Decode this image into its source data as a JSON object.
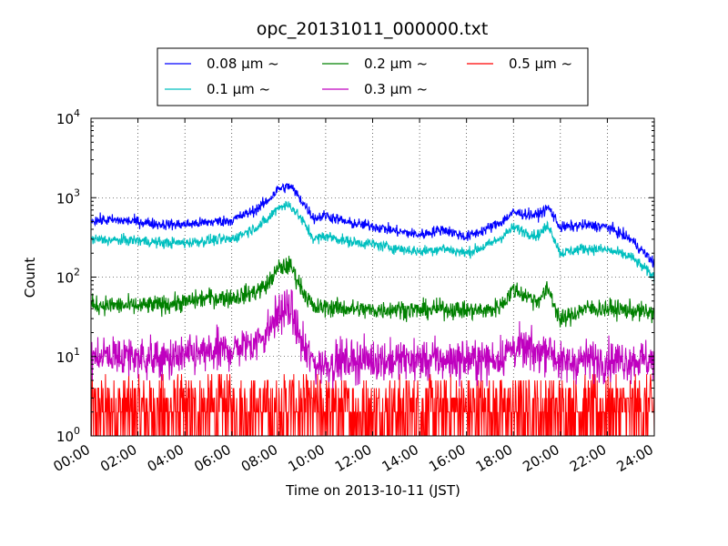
{
  "chart_data": {
    "type": "line",
    "title": "opc_20131011_000000.txt",
    "xlabel": "Time on 2013-10-11 (JST)",
    "ylabel": "Count",
    "y_scale": "log",
    "ylim": [
      1,
      10000
    ],
    "xlim": [
      "00:00",
      "24:00"
    ],
    "x_ticks": [
      "00:00",
      "02:00",
      "04:00",
      "06:00",
      "08:00",
      "10:00",
      "12:00",
      "14:00",
      "16:00",
      "18:00",
      "20:00",
      "22:00",
      "24:00"
    ],
    "y_ticks": [
      {
        "base": "10",
        "exp": "0",
        "value": 1
      },
      {
        "base": "10",
        "exp": "1",
        "value": 10
      },
      {
        "base": "10",
        "exp": "2",
        "value": 100
      },
      {
        "base": "10",
        "exp": "3",
        "value": 1000
      },
      {
        "base": "10",
        "exp": "4",
        "value": 10000
      }
    ],
    "grid": true,
    "legend_position": "top",
    "x_hours": [
      0,
      1,
      2,
      3,
      4,
      5,
      6,
      7,
      7.5,
      8,
      8.5,
      9,
      9.5,
      10,
      11,
      12,
      13,
      14,
      15,
      16,
      17,
      17.5,
      18,
      19,
      19.5,
      20,
      21,
      22,
      23,
      24
    ],
    "series": [
      {
        "name": "0.08 μm ~",
        "color": "#0000ff",
        "noise": 0.035,
        "spikes": 0,
        "values": [
          520,
          520,
          500,
          460,
          460,
          490,
          520,
          700,
          900,
          1300,
          1400,
          900,
          550,
          600,
          480,
          440,
          380,
          340,
          400,
          320,
          420,
          500,
          650,
          600,
          750,
          420,
          450,
          430,
          300,
          150
        ]
      },
      {
        "name": "0.1 μm ~",
        "color": "#00bfbf",
        "noise": 0.035,
        "spikes": 0,
        "values": [
          300,
          290,
          290,
          270,
          270,
          290,
          300,
          420,
          520,
          780,
          800,
          520,
          300,
          330,
          280,
          260,
          230,
          210,
          230,
          200,
          260,
          320,
          420,
          330,
          450,
          200,
          230,
          220,
          180,
          100
        ]
      },
      {
        "name": "0.2 μm ~",
        "color": "#008000",
        "noise": 0.06,
        "spikes": 0,
        "values": [
          45,
          44,
          43,
          45,
          48,
          55,
          55,
          65,
          80,
          130,
          140,
          70,
          40,
          42,
          40,
          38,
          40,
          38,
          40,
          38,
          38,
          45,
          70,
          50,
          70,
          28,
          40,
          40,
          38,
          35
        ]
      },
      {
        "name": "0.3 μm ~",
        "color": "#bf00bf",
        "noise": 0.13,
        "spikes": 0,
        "values": [
          11,
          10,
          10,
          9,
          10,
          11,
          12,
          15,
          20,
          35,
          40,
          14,
          8,
          8,
          9,
          9,
          9,
          9,
          9,
          9,
          9,
          10,
          13,
          11,
          13,
          8,
          9,
          9,
          9,
          9
        ]
      },
      {
        "name": "0.5 μm ~",
        "color": "#ff0000",
        "noise": 0,
        "spikes": 1,
        "values": [
          1.6,
          1.6,
          1.6,
          1.6,
          1.6,
          1.6,
          1.7,
          1.8,
          2,
          2.4,
          2.6,
          1.8,
          1.5,
          1.5,
          1.5,
          1.5,
          1.5,
          1.5,
          1.5,
          1.5,
          1.5,
          1.6,
          1.8,
          1.6,
          1.8,
          1.5,
          1.5,
          1.5,
          1.5,
          1.5
        ]
      }
    ]
  }
}
